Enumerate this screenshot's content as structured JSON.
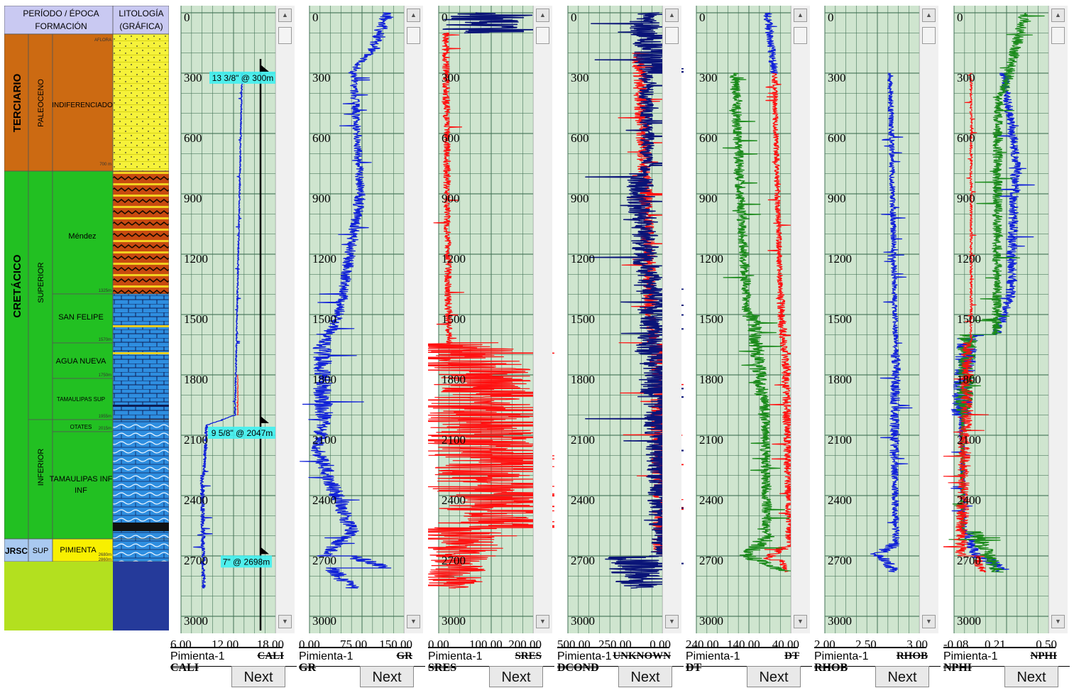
{
  "stratigraphy": {
    "header": {
      "periodo": "PERÍODO / ÉPOCA",
      "formacion": "FORMACIÓN",
      "litologia": "LITOLOGÍA",
      "litologia_sub": "(GRÁFICA)"
    },
    "periods": [
      "TERCIARIO",
      "CRETÁCICO",
      "JRSC"
    ],
    "epochs": [
      "PALEOCENO",
      "SUPERIOR",
      "INFERIOR",
      "SUP"
    ],
    "formations": [
      "INDIFERENCIADO",
      "Méndez",
      "SAN FELIPE",
      "AGUA NUEVA",
      "TAMAULIPAS SUP",
      "OTATES",
      "TAMAULIPAS INF",
      "PIMIENTA"
    ],
    "top_label": "AFLORA",
    "depth_marks": [
      "700 m",
      "1325m",
      "1570m",
      "1750m",
      "1955m",
      "2015m",
      "2680m",
      "2860m"
    ],
    "colors": {
      "terciario": "#cc6a12",
      "cretacico": "#22c022",
      "jurasico": "#a9c9f0",
      "empty": "#b3e01f",
      "lith_empty": "#253a9a",
      "header": "#c9c9f2"
    }
  },
  "tracks": [
    {
      "scale": [
        "6.00",
        "12.00",
        "18.00"
      ],
      "well": "Pimienta-1",
      "curve_right": "CALI",
      "curve_left": "CALI",
      "next": "Next",
      "depth_ticks": [
        "0",
        "300",
        "600",
        "900",
        "1200",
        "1500",
        "1800",
        "2100",
        "2400",
        "2700",
        "3000"
      ],
      "casing": [
        "13 3/8\" @ 300m",
        "9 5/8\" @ 2047m",
        "7\" @ 2698m"
      ]
    },
    {
      "scale": [
        "0.00",
        "75.00",
        "150.00"
      ],
      "well": "Pimienta-1",
      "curve_right": "GR",
      "curve_left": "GR",
      "next": "Next",
      "depth_ticks": [
        "0",
        "300",
        "600",
        "900",
        "1200",
        "1500",
        "1800",
        "2100",
        "2400",
        "2700",
        "3000"
      ]
    },
    {
      "scale": [
        "0.00",
        "100.00",
        "200.00"
      ],
      "well": "Pimienta-1",
      "curve_right": "SRES",
      "curve_left": "SRES",
      "next": "Next",
      "depth_ticks": [
        "0",
        "300",
        "600",
        "900",
        "1200",
        "1500",
        "1800",
        "2100",
        "2400",
        "2700",
        "3000"
      ]
    },
    {
      "scale": [
        "500.00",
        "250.00",
        "0.00"
      ],
      "well": "Pimienta-1",
      "curve_right": "UNKNOWN",
      "curve_left": "DCOND",
      "next": "Next",
      "depth_ticks": [
        "0",
        "300",
        "600",
        "900",
        "1200",
        "1500",
        "1800",
        "2100",
        "2400",
        "2700",
        "3000"
      ]
    },
    {
      "scale": [
        "240.00",
        "140.00",
        "40.00"
      ],
      "well": "Pimienta-1",
      "curve_right": "DT",
      "curve_left": "DT",
      "next": "Next",
      "depth_ticks": [
        "0",
        "300",
        "600",
        "900",
        "1200",
        "1500",
        "1800",
        "2100",
        "2400",
        "2700",
        "3000"
      ]
    },
    {
      "scale": [
        "2.00",
        "2.50",
        "3.00"
      ],
      "well": "Pimienta-1",
      "curve_right": "RHOB",
      "curve_left": "RHOB",
      "next": "Next",
      "depth_ticks": [
        "0",
        "300",
        "600",
        "900",
        "1200",
        "1500",
        "1800",
        "2100",
        "2400",
        "2700",
        "3000"
      ]
    },
    {
      "scale": [
        "-0.08",
        "0.21",
        "0.50"
      ],
      "well": "Pimienta-1",
      "curve_right": "NPHI",
      "curve_left": "NPHI",
      "next": "Next",
      "depth_ticks": [
        "0",
        "300",
        "600",
        "900",
        "1200",
        "1500",
        "1800",
        "2100",
        "2400",
        "2700",
        "3000"
      ]
    }
  ],
  "colors": {
    "grid_bg": "#cfe5cf",
    "grid_line": "#3c6e50",
    "curve_blue": "#1020d8",
    "curve_navy": "#0a1478",
    "curve_red": "#ff1010",
    "curve_green": "#1a8a1a",
    "casing_label": "#40f0f0"
  }
}
